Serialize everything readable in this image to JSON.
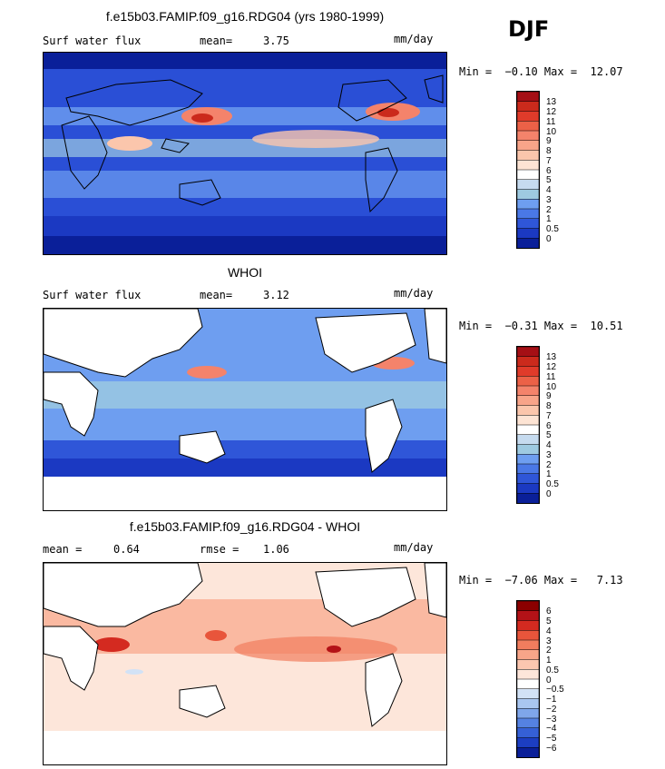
{
  "season": "DJF",
  "unit": "mm/day",
  "panels": [
    {
      "title": "f.e15b03.FAMIP.f09_g16.RDG04 (yrs 1980-1999)",
      "left_label": "Surf water flux",
      "stat1_label": "mean=",
      "stat1_value": "3.75",
      "stat2_label": "",
      "stat2_value": "",
      "unit": "mm/day",
      "min_max": "Min =  −0.10 Max =  12.07",
      "colorbar_labels": [
        "13",
        "12",
        "11",
        "10",
        "9",
        "8",
        "7",
        "6",
        "5",
        "4",
        "3",
        "2",
        "1",
        "0.5",
        "0"
      ],
      "colorbar_colors": [
        "#a50f15",
        "#cb2a1c",
        "#e03b2a",
        "#ec6147",
        "#f4836b",
        "#f8a489",
        "#fbc6ac",
        "#fde4d4",
        "#ffffff",
        "#c6dbef",
        "#9ecae1",
        "#6e9ef0",
        "#4a78e6",
        "#2f56d8",
        "#1b39c2",
        "#0a1f99"
      ]
    },
    {
      "title": "WHOI",
      "left_label": "Surf water flux",
      "stat1_label": "mean=",
      "stat1_value": "3.12",
      "stat2_label": "",
      "stat2_value": "",
      "unit": "mm/day",
      "min_max": "Min =  −0.31 Max =  10.51",
      "colorbar_labels": [
        "13",
        "12",
        "11",
        "10",
        "9",
        "8",
        "7",
        "6",
        "5",
        "4",
        "3",
        "2",
        "1",
        "0.5",
        "0"
      ],
      "colorbar_colors": [
        "#a50f15",
        "#cb2a1c",
        "#e03b2a",
        "#ec6147",
        "#f4836b",
        "#f8a489",
        "#fbc6ac",
        "#fde4d4",
        "#ffffff",
        "#c6dbef",
        "#9ecae1",
        "#6e9ef0",
        "#4a78e6",
        "#2f56d8",
        "#1b39c2",
        "#0a1f99"
      ]
    },
    {
      "title": "f.e15b03.FAMIP.f09_g16.RDG04 - WHOI",
      "left_label": "mean =",
      "stat1_label": "",
      "stat1_value": "0.64",
      "stat2_label": "rmse =",
      "stat2_value": "1.06",
      "unit": "mm/day",
      "min_max": "Min =  −7.06 Max =   7.13",
      "colorbar_labels": [
        "6",
        "5",
        "4",
        "3",
        "2",
        "1",
        "0.5",
        "0",
        "−0.5",
        "−1",
        "−2",
        "−3",
        "−4",
        "−5",
        "−6"
      ],
      "colorbar_colors": [
        "#8b0000",
        "#b31217",
        "#d42a20",
        "#e8553b",
        "#f17d5e",
        "#f8a589",
        "#fcc7b0",
        "#fde6da",
        "#ffffff",
        "#d2e2f6",
        "#a9c6f0",
        "#7fa6ea",
        "#5582e2",
        "#3560d6",
        "#1c3ec2",
        "#0a1f99"
      ]
    }
  ]
}
